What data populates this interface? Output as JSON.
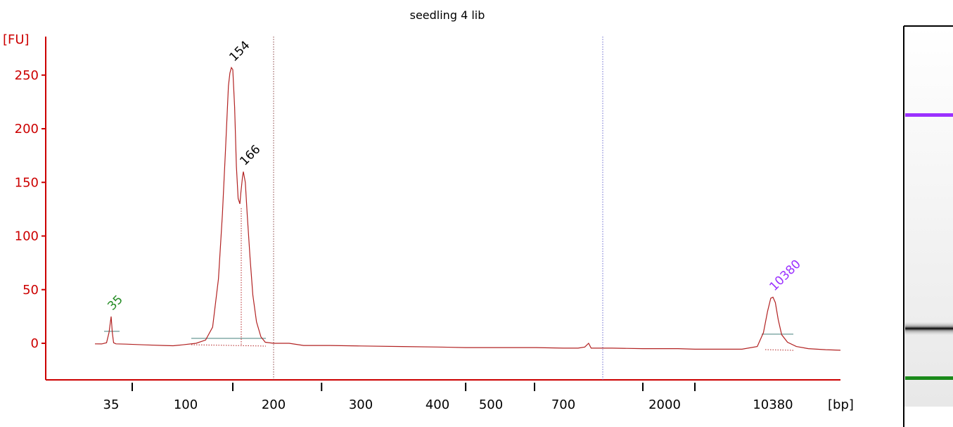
{
  "title": "seedling 4 lib",
  "chart_data": {
    "type": "line",
    "title": "seedling 4 lib",
    "ylabel": "[FU]",
    "xlabel": "[bp]",
    "ylim": [
      -35,
      285
    ],
    "y_ticks": [
      0,
      50,
      100,
      150,
      200,
      250
    ],
    "x_tick_labels": [
      "35",
      "100",
      "200",
      "300",
      "400",
      "500",
      "700",
      "2000",
      "10380"
    ],
    "grid": false,
    "peaks": [
      {
        "label": "35",
        "fu": 25,
        "color": "#228b22"
      },
      {
        "label": "154",
        "fu": 257,
        "color": "#000000"
      },
      {
        "label": "166",
        "fu": 160,
        "color": "#000000"
      },
      {
        "label": "10380",
        "fu": 43,
        "color": "#9b30ff"
      }
    ],
    "markers": [
      {
        "label": "200",
        "color": "#8b4545"
      },
      {
        "label": "1000",
        "color": "#6b6bd0"
      }
    ],
    "series": [
      {
        "values": [
          [
            30,
            -0.5
          ],
          [
            32,
            -0.6
          ],
          [
            33.5,
            0.5
          ],
          [
            34.3,
            10
          ],
          [
            35,
            25
          ],
          [
            35.7,
            10
          ],
          [
            36.5,
            0.5
          ],
          [
            38,
            -0.5
          ],
          [
            45,
            -0.8
          ],
          [
            60,
            -1.5
          ],
          [
            75,
            -2
          ],
          [
            85,
            -2.3
          ],
          [
            95,
            -1.5
          ],
          [
            110,
            0
          ],
          [
            120,
            3
          ],
          [
            128,
            15
          ],
          [
            135,
            60
          ],
          [
            140,
            120
          ],
          [
            144,
            180
          ],
          [
            148,
            240
          ],
          [
            150,
            252
          ],
          [
            152,
            257
          ],
          [
            154,
            255
          ],
          [
            156,
            220
          ],
          [
            158,
            165
          ],
          [
            160,
            135
          ],
          [
            162,
            130
          ],
          [
            163,
            140
          ],
          [
            165,
            155
          ],
          [
            166,
            160
          ],
          [
            168,
            150
          ],
          [
            170,
            120
          ],
          [
            173,
            80
          ],
          [
            176,
            45
          ],
          [
            180,
            20
          ],
          [
            185,
            6
          ],
          [
            190,
            1
          ],
          [
            200,
            0
          ],
          [
            215,
            0
          ],
          [
            230,
            -2
          ],
          [
            260,
            -2
          ],
          [
            300,
            -2.5
          ],
          [
            350,
            -3
          ],
          [
            400,
            -3.5
          ],
          [
            450,
            -4
          ],
          [
            500,
            -4
          ],
          [
            600,
            -4
          ],
          [
            700,
            -4.5
          ],
          [
            800,
            -4.5
          ],
          [
            850,
            -3.5
          ],
          [
            880,
            0
          ],
          [
            900,
            -4.5
          ],
          [
            950,
            -4.5
          ],
          [
            1100,
            -4.5
          ],
          [
            1500,
            -5
          ],
          [
            2000,
            -5
          ],
          [
            3000,
            -5
          ],
          [
            5000,
            -5.5
          ],
          [
            7000,
            -5.5
          ],
          [
            8500,
            -3
          ],
          [
            9200,
            10
          ],
          [
            9700,
            30
          ],
          [
            10100,
            42
          ],
          [
            10380,
            43
          ],
          [
            10700,
            38
          ],
          [
            11100,
            22
          ],
          [
            11600,
            8
          ],
          [
            12500,
            1
          ],
          [
            14000,
            -3
          ],
          [
            16000,
            -5
          ],
          [
            19000,
            -6
          ],
          [
            22000,
            -6.5
          ]
        ]
      }
    ]
  },
  "gel": {
    "bands": [
      {
        "name": "upper-marker",
        "color": "#9b30ff"
      },
      {
        "name": "sample",
        "color": "#111111"
      },
      {
        "name": "lower-marker",
        "color": "#1a8a1a"
      }
    ]
  }
}
